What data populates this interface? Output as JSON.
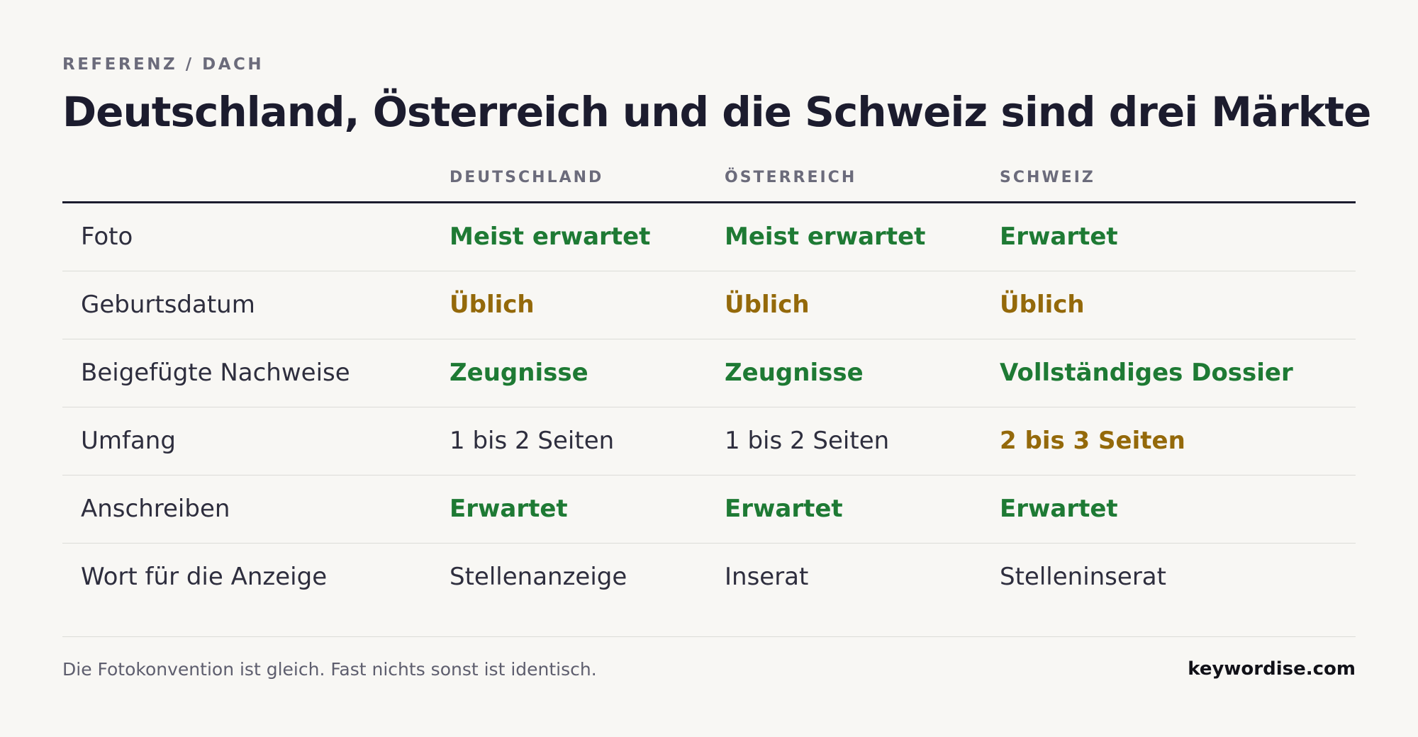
{
  "header": {
    "eyebrow": "REFERENZ / DACH",
    "title": "Deutschland, Österreich und die Schweiz sind drei Märkte"
  },
  "table": {
    "columns": [
      "",
      "DEUTSCHLAND",
      "ÖSTERREICH",
      "SCHWEIZ"
    ],
    "rows": [
      {
        "label": "Foto",
        "cells": [
          {
            "text": "Meist erwartet",
            "status": "good"
          },
          {
            "text": "Meist erwartet",
            "status": "good"
          },
          {
            "text": "Erwartet",
            "status": "good"
          }
        ]
      },
      {
        "label": "Geburtsdatum",
        "cells": [
          {
            "text": "Üblich",
            "status": "warn"
          },
          {
            "text": "Üblich",
            "status": "warn"
          },
          {
            "text": "Üblich",
            "status": "warn"
          }
        ]
      },
      {
        "label": "Beigefügte Nachweise",
        "cells": [
          {
            "text": "Zeugnisse",
            "status": "good"
          },
          {
            "text": "Zeugnisse",
            "status": "good"
          },
          {
            "text": "Vollständiges Dossier",
            "status": "good"
          }
        ]
      },
      {
        "label": "Umfang",
        "cells": [
          {
            "text": "1 bis 2 Seiten",
            "status": "plain"
          },
          {
            "text": "1 bis 2 Seiten",
            "status": "plain"
          },
          {
            "text": "2 bis 3 Seiten",
            "status": "warn"
          }
        ]
      },
      {
        "label": "Anschreiben",
        "cells": [
          {
            "text": "Erwartet",
            "status": "good"
          },
          {
            "text": "Erwartet",
            "status": "good"
          },
          {
            "text": "Erwartet",
            "status": "good"
          }
        ]
      },
      {
        "label": "Wort für die Anzeige",
        "cells": [
          {
            "text": "Stellenanzeige",
            "status": "plain"
          },
          {
            "text": "Inserat",
            "status": "plain"
          },
          {
            "text": "Stelleninserat",
            "status": "plain"
          }
        ]
      }
    ]
  },
  "footer": {
    "note": "Die Fotokonvention ist gleich. Fast nichts sonst ist identisch.",
    "brand": "keywordise.com"
  },
  "colors": {
    "background": "#f8f7f4",
    "text": "#1c1c2e",
    "muted": "#6b6b7b",
    "good": "#1e7a34",
    "warn": "#94690a",
    "rule": "#dcdcd8"
  }
}
